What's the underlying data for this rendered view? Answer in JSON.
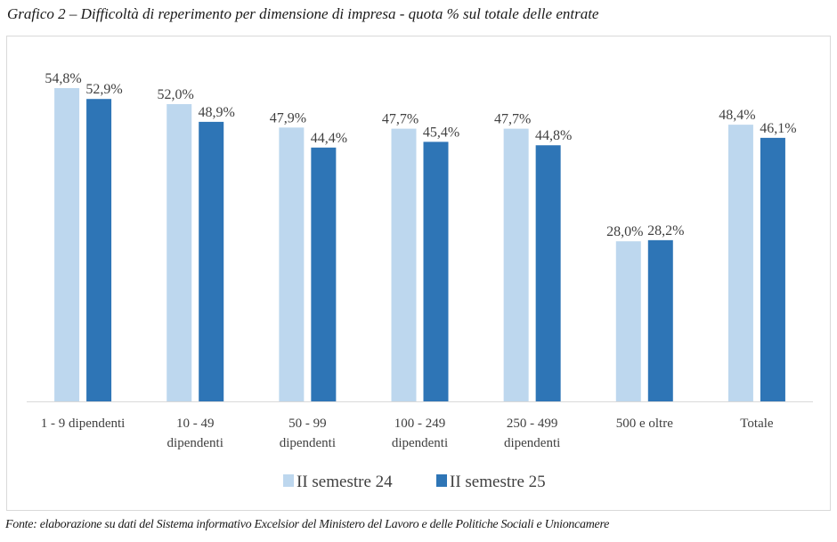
{
  "title": "Grafico 2 – Difficoltà di reperimento per dimensione di impresa - quota % sul totale delle entrate",
  "source": "Fonte: elaborazione su dati del Sistema informativo Excelsior del Ministero del Lavoro e delle Politiche Sociali e Unioncamere",
  "chart_data": {
    "type": "bar",
    "categories": [
      [
        "1 - 9 dipendenti"
      ],
      [
        "10 - 49",
        "dipendenti"
      ],
      [
        "50 - 99",
        "dipendenti"
      ],
      [
        "100 - 249",
        "dipendenti"
      ],
      [
        "250 - 499",
        "dipendenti"
      ],
      [
        "500 e oltre"
      ],
      [
        "Totale"
      ]
    ],
    "series": [
      {
        "name": "II semestre 24",
        "color": "#bdd7ee",
        "values": [
          54.8,
          52.0,
          47.9,
          47.7,
          47.7,
          28.0,
          48.4
        ],
        "labels": [
          "54,8%",
          "52,0%",
          "47,9%",
          "47,7%",
          "47,7%",
          "28,0%",
          "48,4%"
        ]
      },
      {
        "name": "II semestre 25",
        "color": "#2e75b6",
        "values": [
          52.9,
          48.9,
          44.4,
          45.4,
          44.8,
          28.2,
          46.1
        ],
        "labels": [
          "52,9%",
          "48,9%",
          "44,4%",
          "45,4%",
          "44,8%",
          "28,2%",
          "46,1%"
        ]
      }
    ],
    "ylim": [
      0,
      55
    ],
    "grid": false,
    "legend": "bottom"
  }
}
